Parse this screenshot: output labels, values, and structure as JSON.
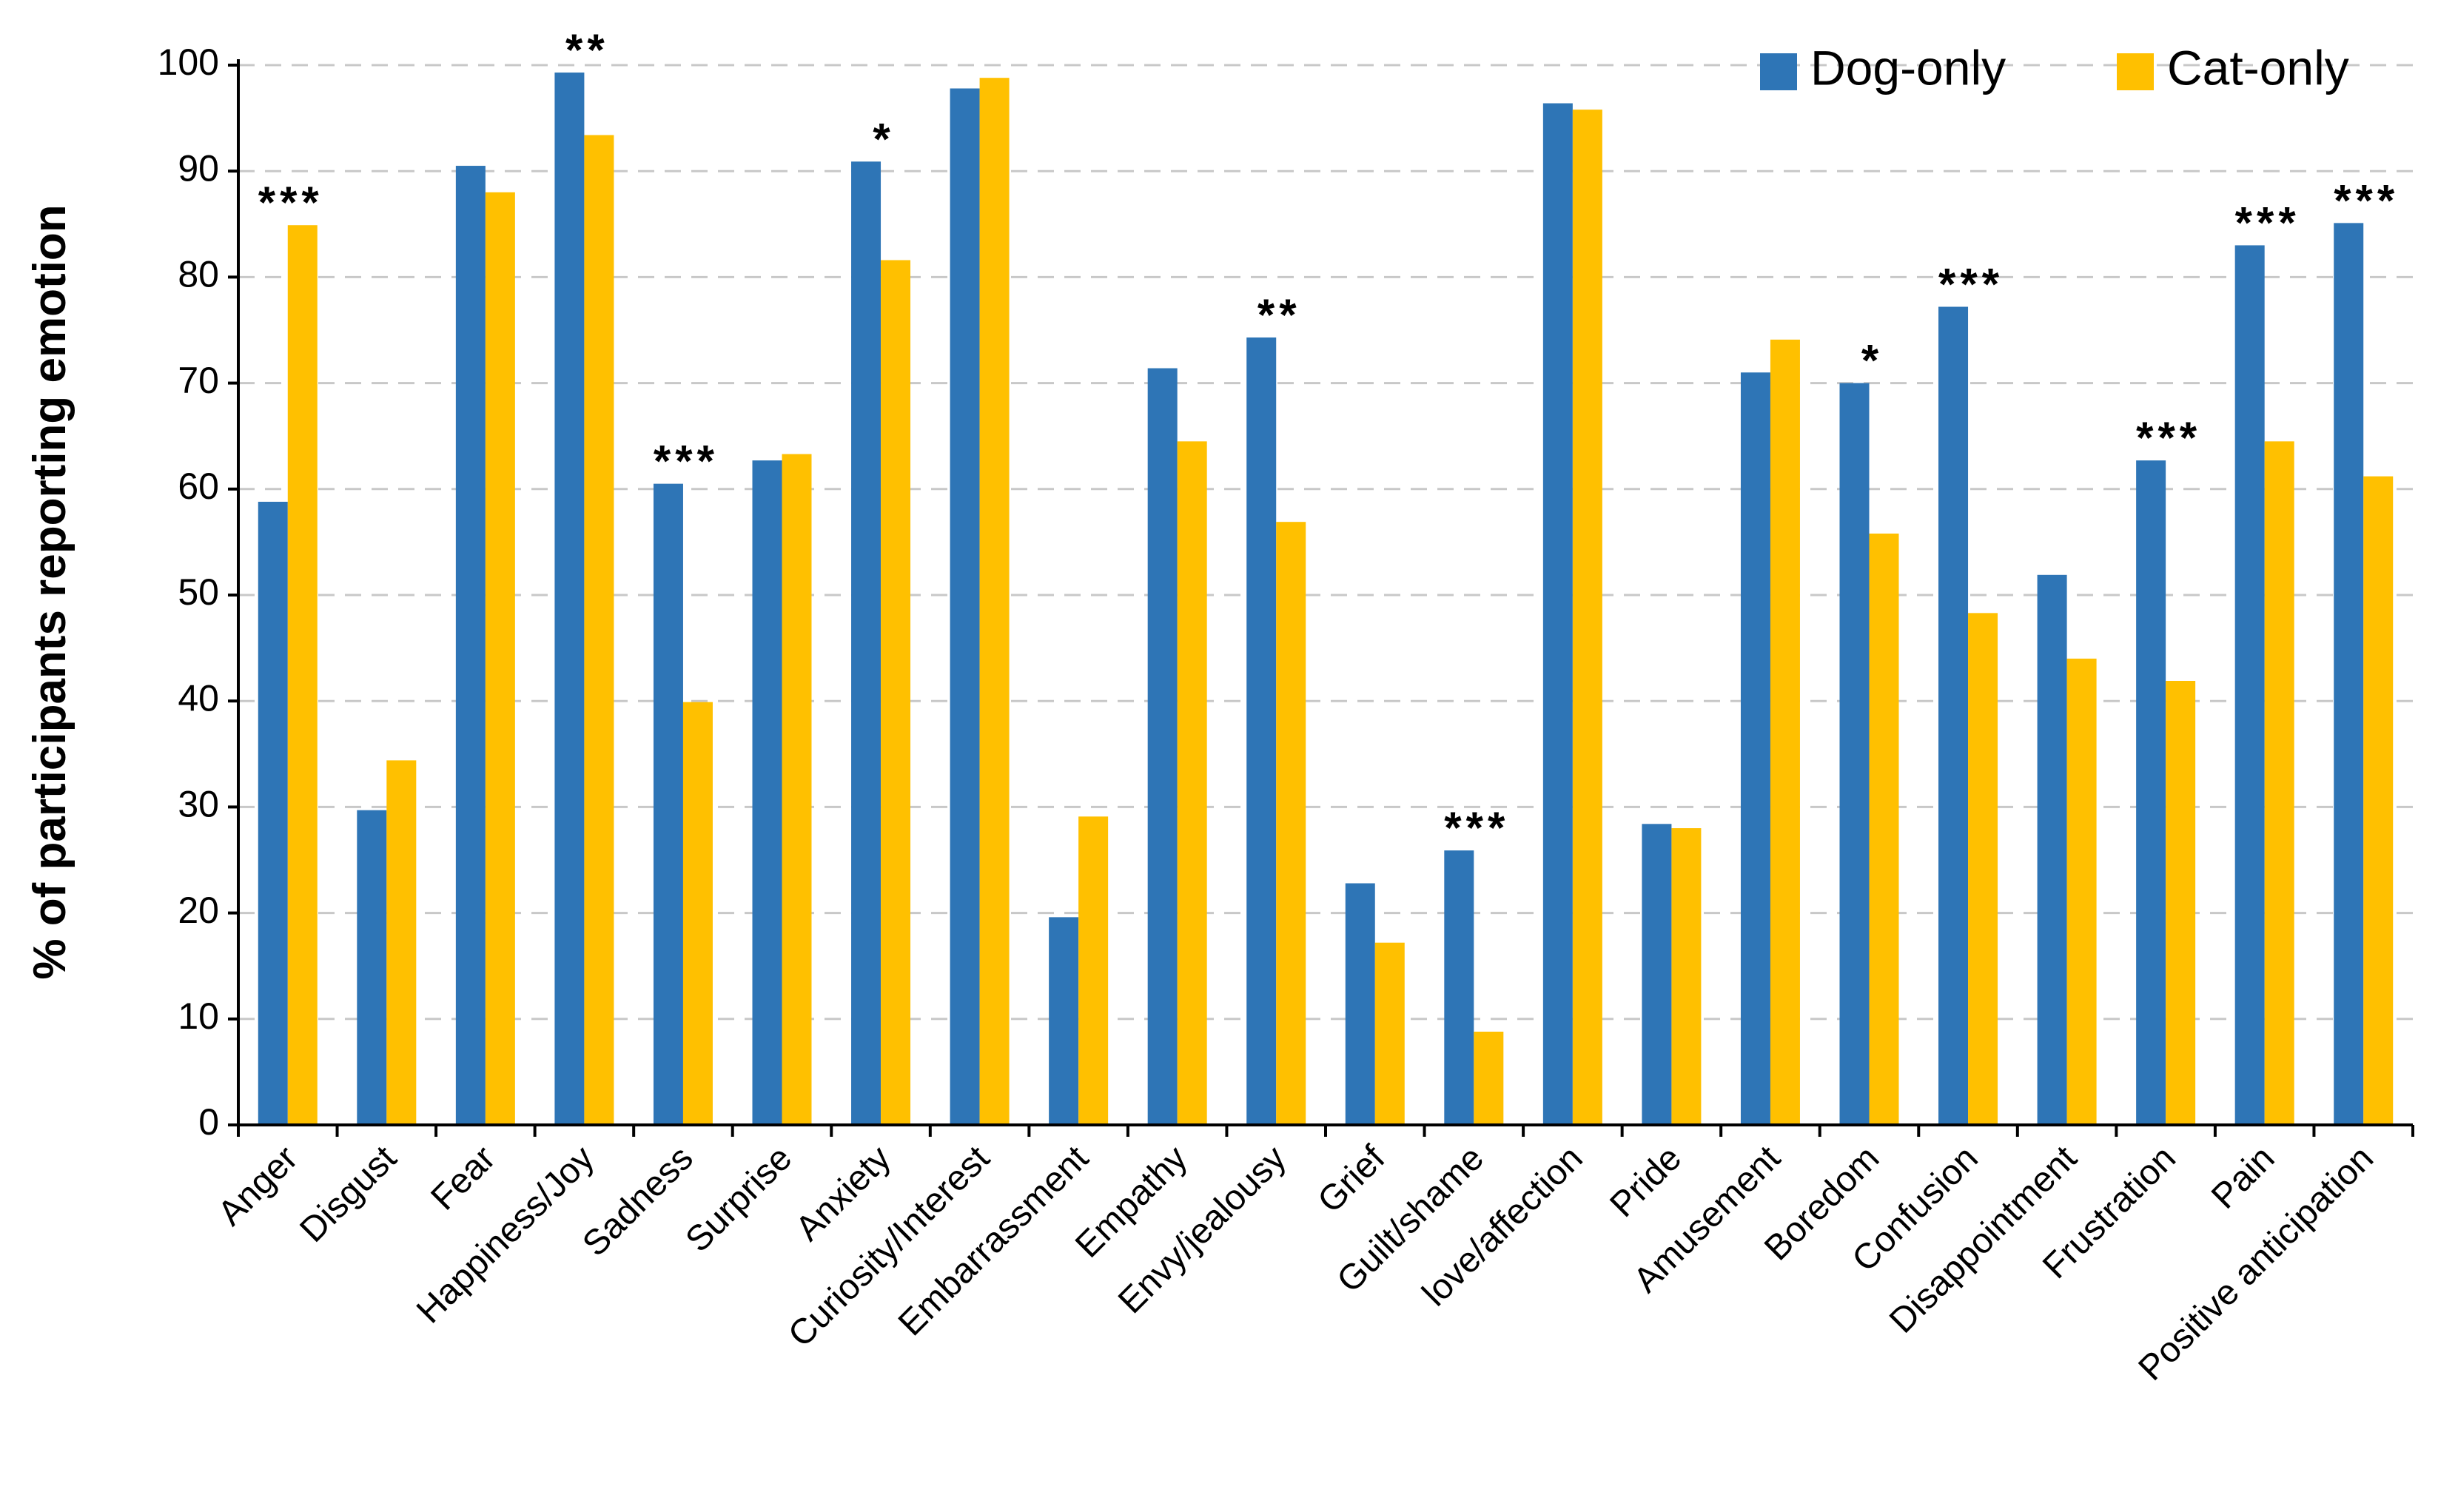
{
  "chart_data": {
    "type": "bar",
    "title": "",
    "xlabel": "",
    "ylabel": "% of participants reporting emotion",
    "ylim": [
      0,
      100
    ],
    "yticks": [
      0,
      10,
      20,
      30,
      40,
      50,
      60,
      70,
      80,
      90,
      100
    ],
    "grid": true,
    "legend_position": "top-right",
    "categories": [
      "Anger",
      "Disgust",
      "Fear",
      "Happiness/Joy",
      "Sadness",
      "Surprise",
      "Anxiety",
      "Curiosity/Interest",
      "Embarrassment",
      "Empathy",
      "Envy/jealousy",
      "Grief",
      "Guilt/shame",
      "love/affection",
      "Pride",
      "Amusement",
      "Boredom",
      "Confusion",
      "Disappointment",
      "Frustration",
      "Pain",
      "Positive anticipation"
    ],
    "series": [
      {
        "name": "Dog-only",
        "color": "#2E75B6",
        "values": [
          58.8,
          29.7,
          90.5,
          99.3,
          60.5,
          62.7,
          90.9,
          97.8,
          19.6,
          71.4,
          74.3,
          22.8,
          25.9,
          96.4,
          28.4,
          71.0,
          70.0,
          77.2,
          51.9,
          62.7,
          83.0,
          85.1
        ]
      },
      {
        "name": "Cat-only",
        "color": "#FFC000",
        "values": [
          84.9,
          34.4,
          88.0,
          93.4,
          39.9,
          63.3,
          81.6,
          98.8,
          29.1,
          64.5,
          56.9,
          17.2,
          8.8,
          95.8,
          28.0,
          74.1,
          55.8,
          48.3,
          44.0,
          41.9,
          64.5,
          61.2
        ]
      }
    ],
    "annotations": [
      "***",
      "",
      "",
      "**",
      "***",
      "",
      "*",
      "",
      "",
      "",
      "**",
      "",
      "***",
      "",
      "",
      "",
      "*",
      "***",
      "",
      "***",
      "***",
      "***"
    ]
  }
}
